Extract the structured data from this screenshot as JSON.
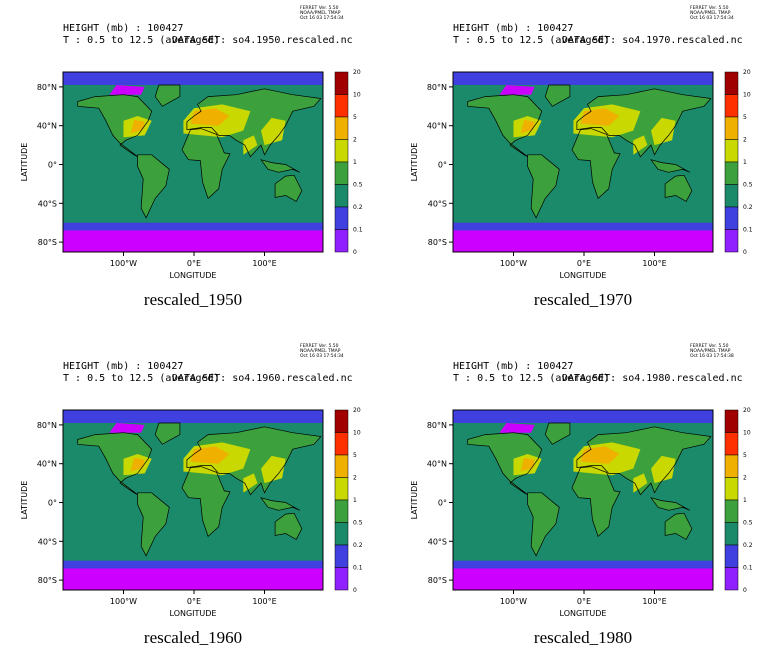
{
  "panels": [
    {
      "header": "HEIGHT (mb) : 100427",
      "range": "T : 0.5 to 12.5 (averaged)",
      "dataset": "DATA SET: so4.1950.rescaled.nc",
      "stamp": [
        "FERRET Ver. 5.50",
        "NOAA/PMEL TMAP",
        "Oct 16 03 17:54:34"
      ],
      "caption": "rescaled_1950"
    },
    {
      "header": "HEIGHT (mb) : 100427",
      "range": "T : 0.5 to 12.5 (averaged)",
      "dataset": "DATA SET: so4.1970.rescaled.nc",
      "stamp": [
        "FERRET Ver. 5.50",
        "NOAA/PMEL TMAP",
        "Oct 16 03 17:54:34"
      ],
      "caption": "rescaled_1970"
    },
    {
      "header": "HEIGHT (mb) : 100427",
      "range": "T : 0.5 to 12.5 (averaged)",
      "dataset": "DATA SET: so4.1960.rescaled.nc",
      "stamp": [
        "FERRET Ver. 5.50",
        "NOAA/PMEL TMAP",
        "Oct 16 03 17:54:34"
      ],
      "caption": "rescaled_1960"
    },
    {
      "header": "HEIGHT (mb) : 100427",
      "range": "T : 0.5 to 12.5 (averaged)",
      "dataset": "DATA SET: so4.1980.rescaled.nc",
      "stamp": [
        "FERRET Ver. 5.50",
        "NOAA/PMEL TMAP",
        "Oct 16 03 17:54:38"
      ],
      "caption": "rescaled_1980"
    }
  ],
  "axes": {
    "y_label": "LATITUDE",
    "x_label": "LONGITUDE",
    "lat_ticks": [
      "80°N",
      "40°N",
      "0°",
      "40°S",
      "80°S"
    ],
    "lon_ticks": [
      "100°W",
      "0°E",
      "100°E"
    ]
  },
  "colorbar": [
    20,
    10,
    5,
    2,
    1,
    0.5,
    0.2,
    0.1,
    0
  ]
}
